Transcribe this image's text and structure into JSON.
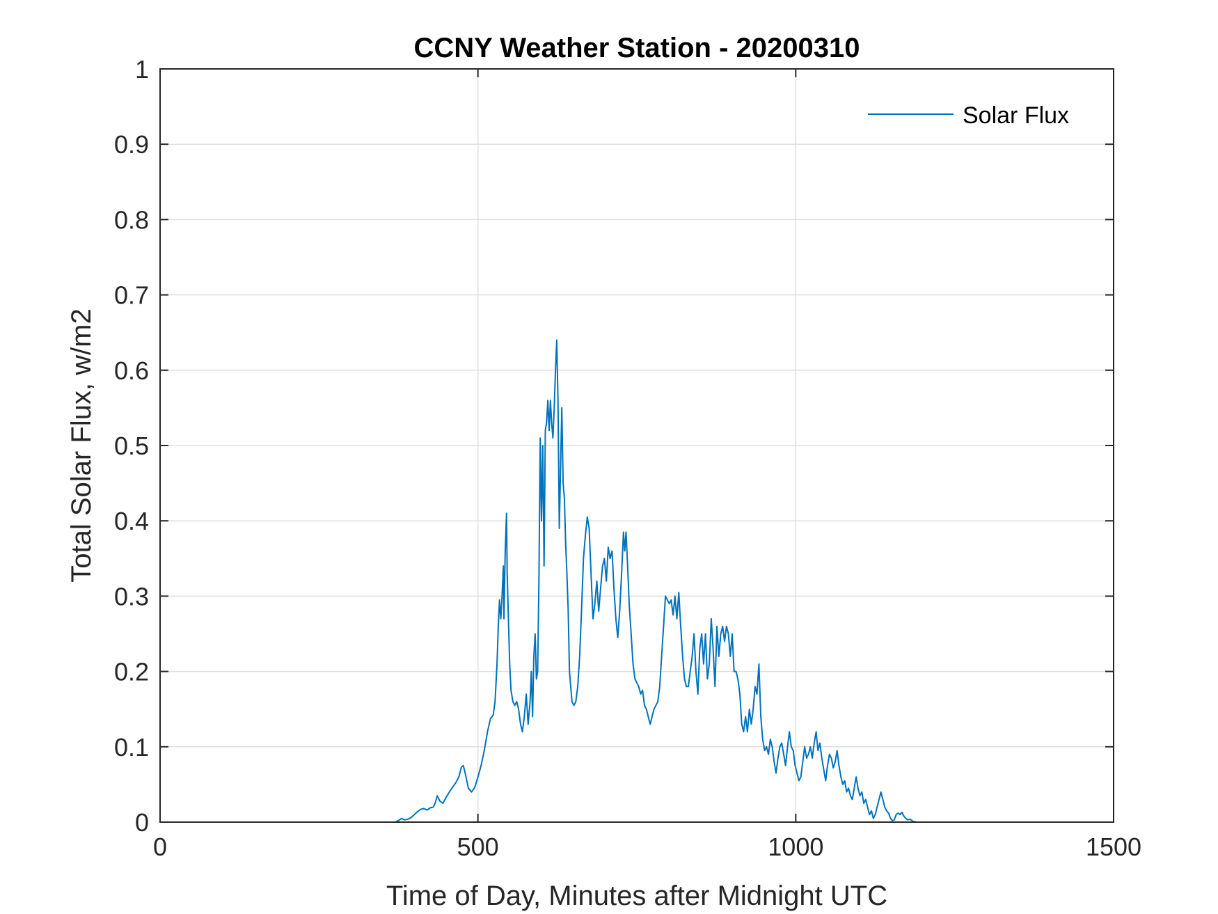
{
  "chart_data": {
    "type": "line",
    "title": "CCNY Weather Station - 20200310",
    "xlabel": "Time of Day, Minutes after Midnight UTC",
    "ylabel": "Total Solar Flux, w/m2",
    "xlim": [
      0,
      1500
    ],
    "ylim": [
      0,
      1
    ],
    "xticks": [
      0,
      500,
      1000,
      1500
    ],
    "xtick_labels": [
      "0",
      "500",
      "1000",
      "1500"
    ],
    "yticks": [
      0,
      0.1,
      0.2,
      0.3,
      0.4,
      0.5,
      0.6,
      0.7,
      0.8,
      0.9,
      1
    ],
    "ytick_labels": [
      "0",
      "0.1",
      "0.2",
      "0.3",
      "0.4",
      "0.5",
      "0.6",
      "0.7",
      "0.8",
      "0.9",
      "1"
    ],
    "grid": true,
    "legend_position": "top-right",
    "series": [
      {
        "name": "Solar Flux",
        "color": "#0072BD",
        "points": [
          [
            0,
            0
          ],
          [
            370,
            0
          ],
          [
            375,
            0.002
          ],
          [
            380,
            0.005
          ],
          [
            385,
            0.003
          ],
          [
            390,
            0.004
          ],
          [
            395,
            0.006
          ],
          [
            400,
            0.01
          ],
          [
            405,
            0.014
          ],
          [
            410,
            0.017
          ],
          [
            415,
            0.018
          ],
          [
            420,
            0.016
          ],
          [
            425,
            0.019
          ],
          [
            430,
            0.02
          ],
          [
            433,
            0.026
          ],
          [
            436,
            0.035
          ],
          [
            440,
            0.028
          ],
          [
            445,
            0.025
          ],
          [
            450,
            0.033
          ],
          [
            455,
            0.04
          ],
          [
            460,
            0.046
          ],
          [
            465,
            0.052
          ],
          [
            470,
            0.06
          ],
          [
            474,
            0.073
          ],
          [
            477,
            0.075
          ],
          [
            480,
            0.065
          ],
          [
            485,
            0.045
          ],
          [
            490,
            0.04
          ],
          [
            495,
            0.046
          ],
          [
            500,
            0.06
          ],
          [
            505,
            0.075
          ],
          [
            510,
            0.095
          ],
          [
            515,
            0.12
          ],
          [
            520,
            0.138
          ],
          [
            524,
            0.142
          ],
          [
            527,
            0.16
          ],
          [
            530,
            0.21
          ],
          [
            532,
            0.26
          ],
          [
            534,
            0.295
          ],
          [
            536,
            0.27
          ],
          [
            538,
            0.3
          ],
          [
            540,
            0.34
          ],
          [
            541,
            0.27
          ],
          [
            543,
            0.36
          ],
          [
            545,
            0.41
          ],
          [
            546,
            0.33
          ],
          [
            548,
            0.27
          ],
          [
            550,
            0.21
          ],
          [
            552,
            0.175
          ],
          [
            555,
            0.16
          ],
          [
            558,
            0.155
          ],
          [
            561,
            0.16
          ],
          [
            564,
            0.15
          ],
          [
            567,
            0.13
          ],
          [
            570,
            0.12
          ],
          [
            573,
            0.14
          ],
          [
            576,
            0.17
          ],
          [
            579,
            0.13
          ],
          [
            582,
            0.16
          ],
          [
            584,
            0.2
          ],
          [
            586,
            0.14
          ],
          [
            588,
            0.22
          ],
          [
            590,
            0.25
          ],
          [
            592,
            0.19
          ],
          [
            594,
            0.2
          ],
          [
            596,
            0.32
          ],
          [
            598,
            0.51
          ],
          [
            600,
            0.4
          ],
          [
            602,
            0.5
          ],
          [
            604,
            0.34
          ],
          [
            606,
            0.52
          ],
          [
            608,
            0.53
          ],
          [
            610,
            0.56
          ],
          [
            612,
            0.52
          ],
          [
            614,
            0.56
          ],
          [
            616,
            0.53
          ],
          [
            618,
            0.51
          ],
          [
            620,
            0.55
          ],
          [
            622,
            0.6
          ],
          [
            624,
            0.64
          ],
          [
            626,
            0.56
          ],
          [
            628,
            0.39
          ],
          [
            630,
            0.47
          ],
          [
            632,
            0.55
          ],
          [
            634,
            0.45
          ],
          [
            636,
            0.43
          ],
          [
            638,
            0.37
          ],
          [
            640,
            0.33
          ],
          [
            642,
            0.28
          ],
          [
            644,
            0.2
          ],
          [
            646,
            0.18
          ],
          [
            648,
            0.16
          ],
          [
            651,
            0.155
          ],
          [
            654,
            0.16
          ],
          [
            657,
            0.18
          ],
          [
            660,
            0.22
          ],
          [
            663,
            0.28
          ],
          [
            666,
            0.35
          ],
          [
            669,
            0.38
          ],
          [
            672,
            0.405
          ],
          [
            675,
            0.39
          ],
          [
            678,
            0.33
          ],
          [
            681,
            0.27
          ],
          [
            684,
            0.29
          ],
          [
            687,
            0.32
          ],
          [
            690,
            0.28
          ],
          [
            693,
            0.31
          ],
          [
            696,
            0.34
          ],
          [
            699,
            0.35
          ],
          [
            702,
            0.32
          ],
          [
            705,
            0.365
          ],
          [
            708,
            0.35
          ],
          [
            711,
            0.36
          ],
          [
            714,
            0.31
          ],
          [
            717,
            0.27
          ],
          [
            720,
            0.245
          ],
          [
            723,
            0.28
          ],
          [
            726,
            0.33
          ],
          [
            729,
            0.385
          ],
          [
            731,
            0.36
          ],
          [
            733,
            0.385
          ],
          [
            735,
            0.35
          ],
          [
            738,
            0.29
          ],
          [
            741,
            0.25
          ],
          [
            744,
            0.21
          ],
          [
            747,
            0.19
          ],
          [
            750,
            0.185
          ],
          [
            753,
            0.18
          ],
          [
            756,
            0.17
          ],
          [
            759,
            0.175
          ],
          [
            762,
            0.155
          ],
          [
            765,
            0.15
          ],
          [
            768,
            0.14
          ],
          [
            771,
            0.13
          ],
          [
            774,
            0.14
          ],
          [
            777,
            0.15
          ],
          [
            780,
            0.155
          ],
          [
            783,
            0.16
          ],
          [
            786,
            0.18
          ],
          [
            789,
            0.22
          ],
          [
            792,
            0.26
          ],
          [
            795,
            0.3
          ],
          [
            798,
            0.295
          ],
          [
            801,
            0.29
          ],
          [
            804,
            0.295
          ],
          [
            807,
            0.275
          ],
          [
            810,
            0.3
          ],
          [
            813,
            0.27
          ],
          [
            816,
            0.305
          ],
          [
            819,
            0.26
          ],
          [
            822,
            0.22
          ],
          [
            825,
            0.19
          ],
          [
            828,
            0.18
          ],
          [
            831,
            0.18
          ],
          [
            834,
            0.2
          ],
          [
            837,
            0.22
          ],
          [
            840,
            0.25
          ],
          [
            843,
            0.2
          ],
          [
            846,
            0.17
          ],
          [
            849,
            0.23
          ],
          [
            852,
            0.25
          ],
          [
            855,
            0.21
          ],
          [
            858,
            0.25
          ],
          [
            861,
            0.19
          ],
          [
            864,
            0.21
          ],
          [
            867,
            0.27
          ],
          [
            870,
            0.23
          ],
          [
            873,
            0.18
          ],
          [
            876,
            0.26
          ],
          [
            879,
            0.22
          ],
          [
            882,
            0.25
          ],
          [
            885,
            0.26
          ],
          [
            888,
            0.24
          ],
          [
            891,
            0.26
          ],
          [
            894,
            0.25
          ],
          [
            897,
            0.22
          ],
          [
            900,
            0.25
          ],
          [
            903,
            0.2
          ],
          [
            906,
            0.2
          ],
          [
            909,
            0.19
          ],
          [
            912,
            0.17
          ],
          [
            915,
            0.13
          ],
          [
            918,
            0.12
          ],
          [
            921,
            0.14
          ],
          [
            924,
            0.12
          ],
          [
            927,
            0.15
          ],
          [
            930,
            0.13
          ],
          [
            933,
            0.15
          ],
          [
            936,
            0.18
          ],
          [
            939,
            0.17
          ],
          [
            942,
            0.21
          ],
          [
            945,
            0.14
          ],
          [
            948,
            0.11
          ],
          [
            951,
            0.095
          ],
          [
            954,
            0.1
          ],
          [
            957,
            0.09
          ],
          [
            960,
            0.11
          ],
          [
            963,
            0.1
          ],
          [
            966,
            0.08
          ],
          [
            969,
            0.065
          ],
          [
            972,
            0.085
          ],
          [
            975,
            0.1
          ],
          [
            978,
            0.105
          ],
          [
            981,
            0.09
          ],
          [
            984,
            0.075
          ],
          [
            987,
            0.1
          ],
          [
            990,
            0.12
          ],
          [
            993,
            0.1
          ],
          [
            996,
            0.095
          ],
          [
            999,
            0.075
          ],
          [
            1002,
            0.065
          ],
          [
            1005,
            0.055
          ],
          [
            1008,
            0.06
          ],
          [
            1011,
            0.08
          ],
          [
            1014,
            0.1
          ],
          [
            1017,
            0.085
          ],
          [
            1020,
            0.09
          ],
          [
            1023,
            0.1
          ],
          [
            1026,
            0.085
          ],
          [
            1029,
            0.105
          ],
          [
            1032,
            0.12
          ],
          [
            1035,
            0.095
          ],
          [
            1038,
            0.105
          ],
          [
            1041,
            0.085
          ],
          [
            1044,
            0.07
          ],
          [
            1047,
            0.055
          ],
          [
            1050,
            0.075
          ],
          [
            1053,
            0.09
          ],
          [
            1056,
            0.085
          ],
          [
            1059,
            0.072
          ],
          [
            1062,
            0.08
          ],
          [
            1065,
            0.095
          ],
          [
            1068,
            0.075
          ],
          [
            1071,
            0.06
          ],
          [
            1074,
            0.05
          ],
          [
            1077,
            0.055
          ],
          [
            1080,
            0.04
          ],
          [
            1083,
            0.045
          ],
          [
            1086,
            0.035
          ],
          [
            1089,
            0.03
          ],
          [
            1092,
            0.045
          ],
          [
            1095,
            0.06
          ],
          [
            1098,
            0.045
          ],
          [
            1101,
            0.035
          ],
          [
            1104,
            0.04
          ],
          [
            1107,
            0.025
          ],
          [
            1110,
            0.03
          ],
          [
            1113,
            0.02
          ],
          [
            1116,
            0.01
          ],
          [
            1119,
            0.015
          ],
          [
            1122,
            0.005
          ],
          [
            1125,
            0.01
          ],
          [
            1128,
            0.02
          ],
          [
            1131,
            0.03
          ],
          [
            1134,
            0.04
          ],
          [
            1137,
            0.03
          ],
          [
            1140,
            0.02
          ],
          [
            1143,
            0.015
          ],
          [
            1146,
            0.012
          ],
          [
            1149,
            0.005
          ],
          [
            1152,
            0.002
          ],
          [
            1155,
            0.003
          ],
          [
            1158,
            0.01
          ],
          [
            1161,
            0.012
          ],
          [
            1164,
            0.01
          ],
          [
            1167,
            0.013
          ],
          [
            1170,
            0.008
          ],
          [
            1173,
            0.005
          ],
          [
            1176,
            0.003
          ],
          [
            1180,
            0.004
          ],
          [
            1184,
            0.001
          ],
          [
            1190,
            0
          ],
          [
            1300,
            0
          ],
          [
            1440,
            0
          ]
        ]
      }
    ]
  }
}
